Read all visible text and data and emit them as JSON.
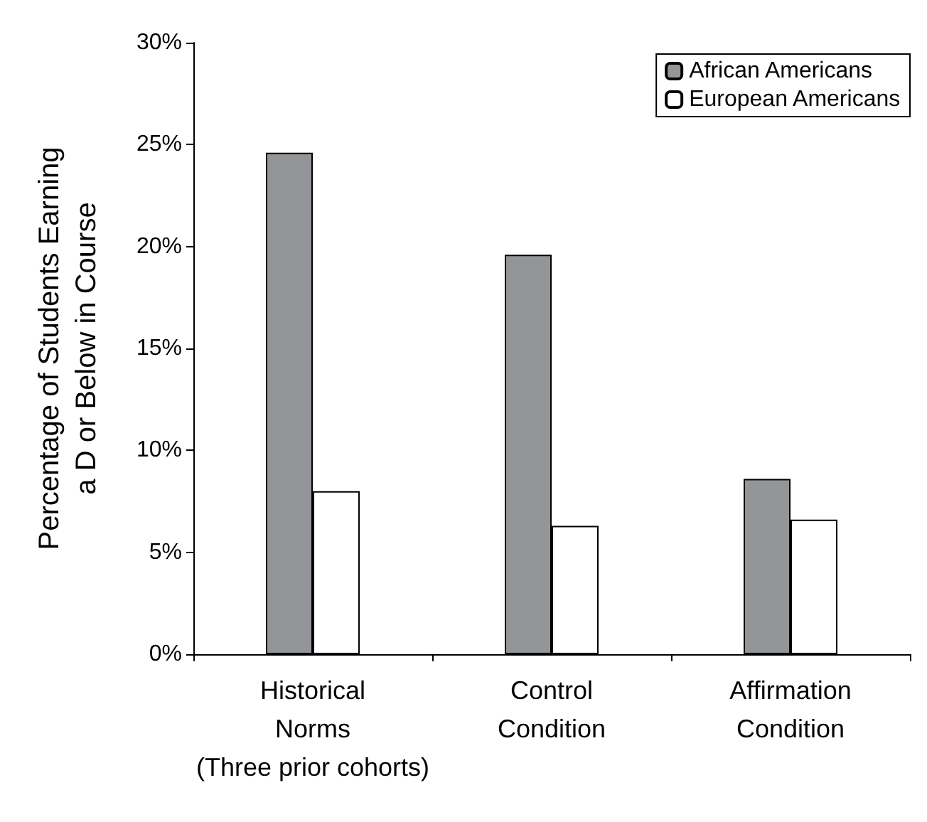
{
  "chart_data": {
    "type": "bar",
    "ylabel": "Percentage of Students Earning\na D or Below in Course",
    "categories": [
      "Historical\nNorms\n(Three prior cohorts)",
      "Control\nCondition",
      "Affirmation\nCondition"
    ],
    "series": [
      {
        "name": "African Americans",
        "color": "#939598",
        "values": [
          24.6,
          19.6,
          8.6
        ]
      },
      {
        "name": "European Americans",
        "color": "#ffffff",
        "values": [
          8.0,
          6.3,
          6.6
        ]
      }
    ],
    "ylim": [
      0,
      30
    ],
    "yticks": [
      {
        "value": 0,
        "label": "0%"
      },
      {
        "value": 5,
        "label": "5%"
      },
      {
        "value": 10,
        "label": "10%"
      },
      {
        "value": 15,
        "label": "15%"
      },
      {
        "value": 20,
        "label": "20%"
      },
      {
        "value": 25,
        "label": "25%"
      },
      {
        "value": 30,
        "label": "30%"
      }
    ],
    "grid": false,
    "legend": "top right"
  }
}
